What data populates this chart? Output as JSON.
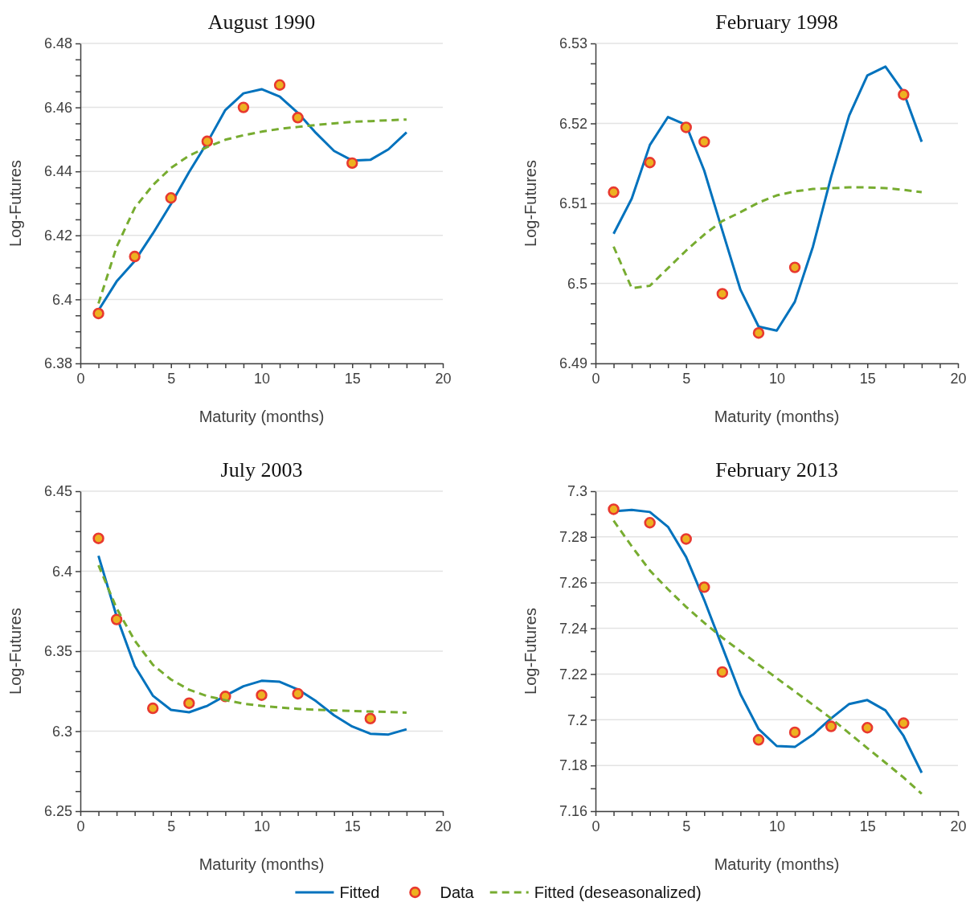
{
  "chart_data": [
    {
      "type": "line",
      "title": "August 1990",
      "xlabel": "Maturity (months)",
      "ylabel": "Log-Futures",
      "xlim": [
        0,
        20
      ],
      "xticks": [
        0,
        {
          "value": 1,
          "label": null
        },
        {
          "value": 2,
          "label": null
        },
        {
          "value": 3,
          "label": null
        },
        {
          "value": 4,
          "label": null
        },
        5,
        {
          "value": 6,
          "label": null
        },
        {
          "value": 7,
          "label": null
        },
        {
          "value": 8,
          "label": null
        },
        {
          "value": 9,
          "label": null
        },
        10,
        {
          "value": 11,
          "label": null
        },
        {
          "value": 12,
          "label": null
        },
        {
          "value": 13,
          "label": null
        },
        {
          "value": 14,
          "label": null
        },
        15,
        {
          "value": 16,
          "label": null
        },
        {
          "value": 17,
          "label": null
        },
        {
          "value": 18,
          "label": null
        },
        {
          "value": 19,
          "label": null
        },
        20
      ],
      "ylim": [
        6.38,
        6.48
      ],
      "yticks": [
        6.38,
        {
          "value": 6.385,
          "label": null
        },
        {
          "value": 6.39,
          "label": null
        },
        {
          "value": 6.395,
          "label": null
        },
        6.4,
        {
          "value": 6.405,
          "label": null
        },
        {
          "value": 6.41,
          "label": null
        },
        {
          "value": 6.415,
          "label": null
        },
        6.42,
        {
          "value": 6.425,
          "label": null
        },
        {
          "value": 6.43,
          "label": null
        },
        {
          "value": 6.435,
          "label": null
        },
        6.44,
        {
          "value": 6.445,
          "label": null
        },
        {
          "value": 6.45,
          "label": null
        },
        {
          "value": 6.455,
          "label": null
        },
        6.46,
        {
          "value": 6.465,
          "label": null
        },
        {
          "value": 6.47,
          "label": null
        },
        {
          "value": 6.475,
          "label": null
        },
        6.48
      ],
      "grid": "y",
      "series": [
        {
          "type": "line",
          "color": "#0072bd",
          "line_style": "solid",
          "x": [
            1,
            2,
            3,
            4,
            5,
            6,
            7,
            8,
            9,
            10,
            11,
            12,
            13,
            14,
            15,
            16,
            17,
            18
          ],
          "values": [
            6.3966,
            6.4056,
            6.412,
            6.4206,
            6.4298,
            6.4398,
            6.449,
            6.4592,
            6.4644,
            6.4657,
            6.4634,
            6.4583,
            6.452,
            6.4464,
            6.4434,
            6.4436,
            6.4469,
            6.4522
          ]
        },
        {
          "type": "scatter",
          "color": "#edb120",
          "marker": "circle",
          "x": [
            1,
            3,
            5,
            7,
            9,
            11,
            12,
            15
          ],
          "values": [
            6.3956,
            6.4134,
            6.4317,
            6.4494,
            6.46,
            6.467,
            6.4568,
            6.4426
          ]
        },
        {
          "type": "line",
          "color": "#77ac30",
          "line_style": "dashed",
          "x": [
            1,
            2,
            3,
            4,
            5,
            6,
            7,
            8,
            9,
            10,
            11,
            12,
            13,
            14,
            15,
            16,
            17,
            18
          ],
          "values": [
            6.3987,
            6.4164,
            6.4286,
            6.4357,
            6.4411,
            6.4449,
            6.4476,
            6.4499,
            6.4513,
            6.4524,
            6.4533,
            6.4539,
            6.4545,
            6.455,
            6.4555,
            6.4557,
            6.456,
            6.4562
          ]
        }
      ]
    },
    {
      "type": "line",
      "title": "February 1998",
      "xlabel": "Maturity (months)",
      "ylabel": "Log-Futures",
      "xlim": [
        0,
        20
      ],
      "xticks": [
        0,
        {
          "value": 1,
          "label": null
        },
        {
          "value": 2,
          "label": null
        },
        {
          "value": 3,
          "label": null
        },
        {
          "value": 4,
          "label": null
        },
        5,
        {
          "value": 6,
          "label": null
        },
        {
          "value": 7,
          "label": null
        },
        {
          "value": 8,
          "label": null
        },
        {
          "value": 9,
          "label": null
        },
        10,
        {
          "value": 11,
          "label": null
        },
        {
          "value": 12,
          "label": null
        },
        {
          "value": 13,
          "label": null
        },
        {
          "value": 14,
          "label": null
        },
        15,
        {
          "value": 16,
          "label": null
        },
        {
          "value": 17,
          "label": null
        },
        {
          "value": 18,
          "label": null
        },
        {
          "value": 19,
          "label": null
        },
        20
      ],
      "ylim": [
        6.49,
        6.53
      ],
      "yticks": [
        6.49,
        {
          "value": 6.4925,
          "label": null
        },
        {
          "value": 6.495,
          "label": null
        },
        {
          "value": 6.4975,
          "label": null
        },
        6.5,
        {
          "value": 6.5025,
          "label": null
        },
        {
          "value": 6.505,
          "label": null
        },
        {
          "value": 6.5075,
          "label": null
        },
        6.51,
        {
          "value": 6.5125,
          "label": null
        },
        {
          "value": 6.515,
          "label": null
        },
        {
          "value": 6.5175,
          "label": null
        },
        6.52,
        {
          "value": 6.5225,
          "label": null
        },
        {
          "value": 6.525,
          "label": null
        },
        {
          "value": 6.5275,
          "label": null
        },
        6.53
      ],
      "grid": "y",
      "series": [
        {
          "type": "line",
          "color": "#0072bd",
          "line_style": "solid",
          "x": [
            1,
            2,
            3,
            4,
            5,
            6,
            7,
            8,
            9,
            10,
            11,
            12,
            13,
            14,
            15,
            16,
            17,
            18
          ],
          "values": [
            6.5062,
            6.5106,
            6.5173,
            6.5208,
            6.5198,
            6.5141,
            6.5066,
            6.4992,
            6.4946,
            6.4941,
            6.4977,
            6.5046,
            6.5133,
            6.521,
            6.526,
            6.5271,
            6.5239,
            6.5177
          ]
        },
        {
          "type": "scatter",
          "color": "#edb120",
          "marker": "circle",
          "x": [
            1,
            3,
            5,
            6,
            7,
            9,
            11,
            17
          ],
          "values": [
            6.5114,
            6.5151,
            6.5195,
            6.5177,
            6.4987,
            6.4938,
            6.502,
            6.5236
          ]
        },
        {
          "type": "line",
          "color": "#77ac30",
          "line_style": "dashed",
          "x": [
            1,
            2,
            3,
            4,
            5,
            6,
            7,
            8,
            9,
            10,
            11,
            12,
            13,
            14,
            15,
            16,
            17,
            18
          ],
          "values": [
            6.5046,
            6.4994,
            6.4997,
            6.5019,
            6.5041,
            6.5061,
            6.5078,
            6.5089,
            6.5101,
            6.511,
            6.5115,
            6.5118,
            6.5119,
            6.512,
            6.512,
            6.5119,
            6.5117,
            6.5114
          ]
        }
      ]
    },
    {
      "type": "line",
      "title": "July 2003",
      "xlabel": "Maturity (months)",
      "ylabel": "Log-Futures",
      "xlim": [
        0,
        20
      ],
      "xticks": [
        0,
        {
          "value": 1,
          "label": null
        },
        {
          "value": 2,
          "label": null
        },
        {
          "value": 3,
          "label": null
        },
        {
          "value": 4,
          "label": null
        },
        5,
        {
          "value": 6,
          "label": null
        },
        {
          "value": 7,
          "label": null
        },
        {
          "value": 8,
          "label": null
        },
        {
          "value": 9,
          "label": null
        },
        10,
        {
          "value": 11,
          "label": null
        },
        {
          "value": 12,
          "label": null
        },
        {
          "value": 13,
          "label": null
        },
        {
          "value": 14,
          "label": null
        },
        15,
        {
          "value": 16,
          "label": null
        },
        {
          "value": 17,
          "label": null
        },
        {
          "value": 18,
          "label": null
        },
        {
          "value": 19,
          "label": null
        },
        20
      ],
      "ylim": [
        6.25,
        6.45
      ],
      "yticks": [
        6.25,
        {
          "value": 6.2625,
          "label": null
        },
        {
          "value": 6.275,
          "label": null
        },
        {
          "value": 6.2875,
          "label": null
        },
        6.3,
        {
          "value": 6.3125,
          "label": null
        },
        {
          "value": 6.325,
          "label": null
        },
        {
          "value": 6.3375,
          "label": null
        },
        6.35,
        {
          "value": 6.3625,
          "label": null
        },
        {
          "value": 6.375,
          "label": null
        },
        {
          "value": 6.3875,
          "label": null
        },
        6.4,
        {
          "value": 6.4125,
          "label": null
        },
        {
          "value": 6.425,
          "label": null
        },
        {
          "value": 6.4375,
          "label": null
        },
        6.45
      ],
      "grid": "y",
      "series": [
        {
          "type": "line",
          "color": "#0072bd",
          "line_style": "solid",
          "x": [
            1,
            2,
            3,
            4,
            5,
            6,
            7,
            8,
            9,
            10,
            11,
            12,
            13,
            14,
            15,
            16,
            17,
            18
          ],
          "values": [
            6.4096,
            6.3718,
            6.3407,
            6.3222,
            6.3133,
            6.3118,
            6.3158,
            6.3222,
            6.3281,
            6.3315,
            6.3309,
            6.3261,
            6.3188,
            6.3099,
            6.3029,
            6.2984,
            6.2979,
            6.3012
          ]
        },
        {
          "type": "scatter",
          "color": "#edb120",
          "marker": "circle",
          "x": [
            1,
            2,
            4,
            6,
            8,
            10,
            12,
            16
          ],
          "values": [
            6.4205,
            6.3698,
            6.3143,
            6.3175,
            6.3217,
            6.3225,
            6.3234,
            6.3079
          ]
        },
        {
          "type": "line",
          "color": "#77ac30",
          "line_style": "dashed",
          "x": [
            1,
            2,
            3,
            4,
            5,
            6,
            7,
            8,
            9,
            10,
            11,
            12,
            13,
            14,
            15,
            16,
            17,
            18
          ],
          "values": [
            6.4037,
            6.3768,
            6.3566,
            6.3415,
            6.3323,
            6.3259,
            6.3219,
            6.3194,
            6.3172,
            6.3158,
            6.3148,
            6.314,
            6.3133,
            6.313,
            6.3126,
            6.3123,
            6.312,
            6.3116
          ]
        }
      ]
    },
    {
      "type": "line",
      "title": "February 2013",
      "xlabel": "Maturity (months)",
      "ylabel": "Log-Futures",
      "xlim": [
        0,
        20
      ],
      "xticks": [
        0,
        {
          "value": 1,
          "label": null
        },
        {
          "value": 2,
          "label": null
        },
        {
          "value": 3,
          "label": null
        },
        {
          "value": 4,
          "label": null
        },
        5,
        {
          "value": 6,
          "label": null
        },
        {
          "value": 7,
          "label": null
        },
        {
          "value": 8,
          "label": null
        },
        {
          "value": 9,
          "label": null
        },
        10,
        {
          "value": 11,
          "label": null
        },
        {
          "value": 12,
          "label": null
        },
        {
          "value": 13,
          "label": null
        },
        {
          "value": 14,
          "label": null
        },
        15,
        {
          "value": 16,
          "label": null
        },
        {
          "value": 17,
          "label": null
        },
        {
          "value": 18,
          "label": null
        },
        {
          "value": 19,
          "label": null
        },
        20
      ],
      "ylim": [
        7.16,
        7.3
      ],
      "yticks": [
        7.16,
        {
          "value": 7.17,
          "label": null
        },
        7.18,
        {
          "value": 7.19,
          "label": null
        },
        7.2,
        {
          "value": 7.21,
          "label": null
        },
        7.22,
        {
          "value": 7.23,
          "label": null
        },
        7.24,
        {
          "value": 7.25,
          "label": null
        },
        7.26,
        {
          "value": 7.27,
          "label": null
        },
        7.28,
        {
          "value": 7.29,
          "label": null
        },
        7.3
      ],
      "grid": "y",
      "legend": "bottom",
      "series": [
        {
          "type": "line",
          "name": "Fitted",
          "color": "#0072bd",
          "line_style": "solid",
          "x": [
            1,
            2,
            3,
            4,
            5,
            6,
            7,
            8,
            9,
            10,
            11,
            12,
            13,
            14,
            15,
            16,
            17,
            18
          ],
          "values": [
            7.2912,
            7.2918,
            7.2909,
            7.2844,
            7.2712,
            7.2524,
            7.2318,
            7.2112,
            7.1959,
            7.1885,
            7.1881,
            7.1935,
            7.2006,
            7.2069,
            7.2086,
            7.2041,
            7.1929,
            7.1768
          ]
        },
        {
          "type": "scatter",
          "name": "Data",
          "color": "#edb120",
          "marker": "circle",
          "x": [
            1,
            3,
            5,
            6,
            7,
            9,
            11,
            13,
            15,
            17
          ],
          "values": [
            7.2921,
            7.2862,
            7.2791,
            7.258,
            7.2209,
            7.1912,
            7.1945,
            7.1971,
            7.1965,
            7.1985
          ]
        },
        {
          "type": "line",
          "name": "Fitted (deseasonalized)",
          "color": "#77ac30",
          "line_style": "dashed",
          "x": [
            1,
            2,
            3,
            4,
            5,
            6,
            7,
            8,
            9,
            10,
            11,
            12,
            13,
            14,
            15,
            16,
            17,
            18
          ],
          "values": [
            7.2871,
            7.2759,
            7.2653,
            7.2571,
            7.2494,
            7.2424,
            7.2359,
            7.23,
            7.2241,
            7.2182,
            7.2124,
            7.2065,
            7.2006,
            7.1941,
            7.1876,
            7.1812,
            7.1747,
            7.1676
          ]
        }
      ]
    }
  ]
}
